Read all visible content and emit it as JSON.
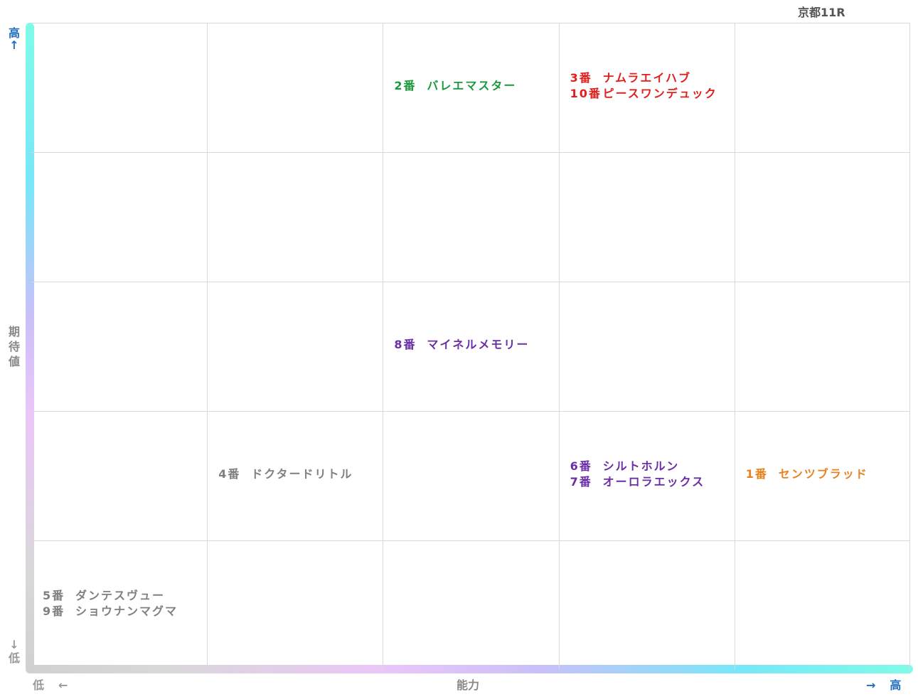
{
  "race_title": "京都11R",
  "y_axis": {
    "label": [
      "期",
      "待",
      "値"
    ],
    "high": "高",
    "high_arrow": "↑",
    "low": "低",
    "low_arrow": "↓"
  },
  "x_axis": {
    "label": "能力",
    "low": "低",
    "low_arrow": "←",
    "high": "高",
    "high_arrow": "→"
  },
  "chart_data": {
    "type": "scatter",
    "title": "京都11R",
    "xlabel": "能力",
    "ylabel": "期待値",
    "x_levels": 5,
    "y_levels": 5,
    "points": [
      {
        "num": "2番",
        "name": "バレエマスター",
        "x": 3,
        "y": 5,
        "color": "#1a9a3c"
      },
      {
        "num": "3番",
        "name": "ナムラエイハブ",
        "x": 4,
        "y": 5,
        "color": "#e0201e"
      },
      {
        "num": "10番",
        "name": "ピースワンデュック",
        "x": 4,
        "y": 5,
        "color": "#e0201e"
      },
      {
        "num": "8番",
        "name": "マイネルメモリー",
        "x": 3,
        "y": 3,
        "color": "#6a2ea6"
      },
      {
        "num": "4番",
        "name": "ドクタードリトル",
        "x": 2,
        "y": 2,
        "color": "#808080"
      },
      {
        "num": "6番",
        "name": "シルトホルン",
        "x": 4,
        "y": 2,
        "color": "#6a2ea6"
      },
      {
        "num": "7番",
        "name": "オーロラエックス",
        "x": 4,
        "y": 2,
        "color": "#6a2ea6"
      },
      {
        "num": "1番",
        "name": "センツブラッド",
        "x": 5,
        "y": 2,
        "color": "#e8821e"
      },
      {
        "num": "5番",
        "name": "ダンテスヴュー",
        "x": 1,
        "y": 1,
        "color": "#808080"
      },
      {
        "num": "9番",
        "name": "ショウナンマグマ",
        "x": 1,
        "y": 1,
        "color": "#808080"
      }
    ]
  },
  "colors": {
    "axis_label": "#1f6fbf",
    "axis_low": "#999999",
    "grid": "#d9d9d9"
  }
}
